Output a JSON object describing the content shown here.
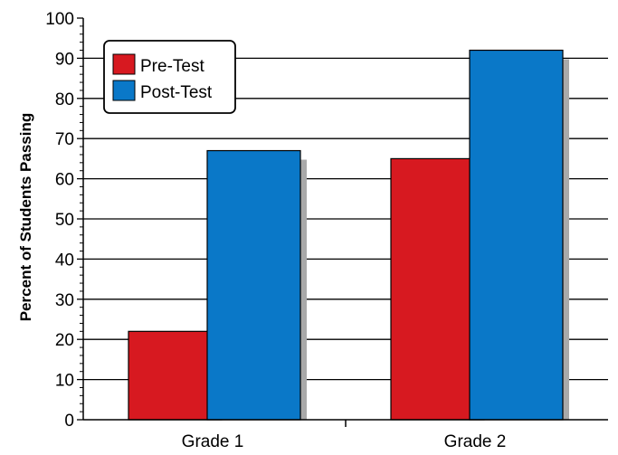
{
  "chart_data": {
    "type": "bar",
    "categories": [
      "Grade 1",
      "Grade 2"
    ],
    "series": [
      {
        "name": "Pre-Test",
        "values": [
          22,
          65
        ],
        "color": "#d71920"
      },
      {
        "name": "Post-Test",
        "values": [
          67,
          92
        ],
        "color": "#0a78c8"
      }
    ],
    "ylabel": "Percent of Students Passing",
    "ylim": [
      0,
      100
    ],
    "yticks": [
      0,
      10,
      20,
      30,
      40,
      50,
      60,
      70,
      80,
      90,
      100
    ],
    "grid": true,
    "legend_position": "top-left"
  }
}
